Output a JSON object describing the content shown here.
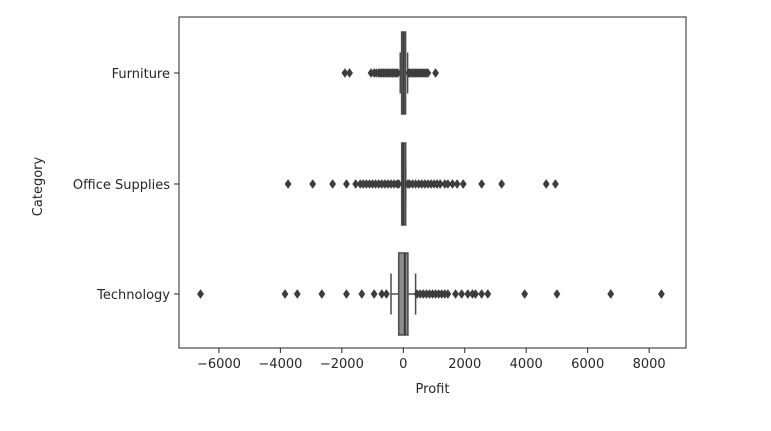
{
  "chart_data": {
    "type": "boxplot",
    "xlabel": "Profit",
    "ylabel": "Category",
    "xlim": [
      -7300,
      9200
    ],
    "x_ticks": [
      -6000,
      -4000,
      -2000,
      0,
      2000,
      4000,
      6000,
      8000
    ],
    "x_tick_labels": [
      "−6000",
      "−4000",
      "−2000",
      "0",
      "2000",
      "4000",
      "6000",
      "8000"
    ],
    "categories": [
      "Furniture",
      "Office Supplies",
      "Technology"
    ],
    "grid": false,
    "colors": {
      "box": "#4c4c4c",
      "outlier": "#3d3d3d",
      "axis": "#262626"
    },
    "boxes": [
      {
        "category": "Furniture",
        "q1": -10,
        "median": 10,
        "q3": 30,
        "whisker_low": -100,
        "whisker_high": 140,
        "outliers": [
          -1900,
          -1750,
          -1050,
          -950,
          -880,
          -800,
          -750,
          -700,
          -650,
          -600,
          -550,
          -500,
          -450,
          -400,
          -350,
          -300,
          -250,
          -200,
          -180,
          180,
          200,
          250,
          300,
          350,
          400,
          450,
          500,
          550,
          600,
          650,
          700,
          750,
          800,
          1050
        ]
      },
      {
        "category": "Office Supplies",
        "q1": 0,
        "median": 5,
        "q3": 25,
        "whisker_low": -50,
        "whisker_high": 80,
        "outliers": [
          -3750,
          -2950,
          -2300,
          -1850,
          -1550,
          -1400,
          -1300,
          -1200,
          -1100,
          -1000,
          -900,
          -800,
          -700,
          -600,
          -500,
          -400,
          -300,
          -200,
          -150,
          150,
          200,
          300,
          400,
          500,
          600,
          700,
          800,
          900,
          1000,
          1100,
          1200,
          1350,
          1450,
          1600,
          1750,
          1950,
          2550,
          3200,
          4650,
          4950
        ]
      },
      {
        "category": "Technology",
        "q1": -150,
        "median": 50,
        "q3": 150,
        "whisker_low": -400,
        "whisker_high": 400,
        "outliers": [
          -6600,
          -3850,
          -3450,
          -2650,
          -1850,
          -1350,
          -950,
          -700,
          -550,
          450,
          550,
          650,
          750,
          850,
          950,
          1050,
          1150,
          1250,
          1350,
          1450,
          1700,
          1900,
          2100,
          2250,
          2350,
          2550,
          2750,
          3950,
          5000,
          6750,
          8400
        ]
      }
    ]
  }
}
